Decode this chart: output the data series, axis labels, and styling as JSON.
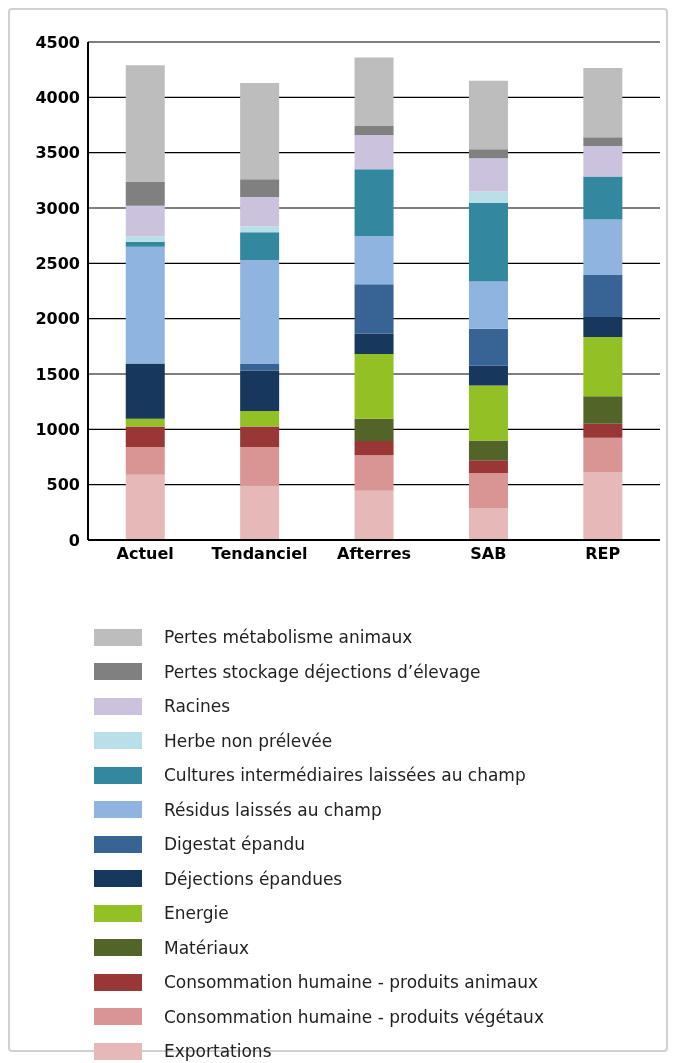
{
  "chart_data": {
    "type": "bar",
    "stacked": true,
    "categories": [
      "Actuel",
      "Tendanciel",
      "Afterres",
      "SAB",
      "REP"
    ],
    "ylim": [
      0,
      4500
    ],
    "yticks": [
      0,
      500,
      1000,
      1500,
      2000,
      2500,
      3000,
      3500,
      4000,
      4500
    ],
    "grid": "y",
    "legend": "bottom",
    "series": [
      {
        "name": "Exportations",
        "color": "#e6b8b8",
        "values": [
          590,
          490,
          445,
          285,
          615
        ]
      },
      {
        "name": "Consommation humaine - produits végétaux",
        "color": "#d99494",
        "values": [
          250,
          350,
          320,
          320,
          310
        ]
      },
      {
        "name": "Consommation humaine - produits animaux",
        "color": "#993737",
        "values": [
          185,
          185,
          130,
          115,
          125
        ]
      },
      {
        "name": "Matériaux",
        "color": "#526428",
        "values": [
          0,
          0,
          200,
          180,
          250
        ]
      },
      {
        "name": "Energie",
        "color": "#93c024",
        "values": [
          70,
          140,
          585,
          495,
          535
        ]
      },
      {
        "name": "Déjections épandues",
        "color": "#17375c",
        "values": [
          500,
          365,
          185,
          180,
          180
        ]
      },
      {
        "name": "Digestat épandu",
        "color": "#386395",
        "values": [
          0,
          60,
          445,
          335,
          380
        ]
      },
      {
        "name": "Résidus laissés au champ",
        "color": "#90b4e0",
        "values": [
          1055,
          940,
          435,
          425,
          500
        ]
      },
      {
        "name": "Cultures intermédiaires laissées au champ",
        "color": "#33879e",
        "values": [
          45,
          250,
          605,
          710,
          390
        ]
      },
      {
        "name": "Herbe non prélevée",
        "color": "#b9e0e8",
        "values": [
          50,
          55,
          0,
          105,
          0
        ]
      },
      {
        "name": "Racines",
        "color": "#cbc3dd",
        "values": [
          275,
          265,
          310,
          300,
          275
        ]
      },
      {
        "name": "Pertes stockage déjections d’élevage",
        "color": "#808080",
        "values": [
          220,
          160,
          80,
          80,
          80
        ]
      },
      {
        "name": "Pertes métabolisme animaux",
        "color": "#bdbdbd",
        "values": [
          1050,
          870,
          620,
          620,
          625
        ]
      }
    ]
  }
}
